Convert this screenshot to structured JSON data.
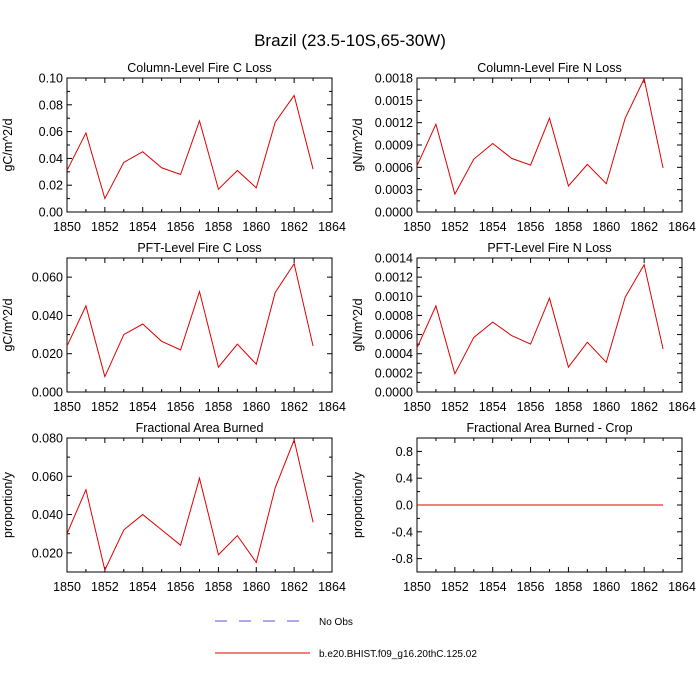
{
  "figure": {
    "title": "Brazil (23.5-10S,65-30W)"
  },
  "legend": {
    "items": [
      {
        "label": "No Obs",
        "style": "dashed",
        "color": "#5a5ad8"
      },
      {
        "label": "b.e20.BHIST.f09_g16.20thC.125.02",
        "style": "solid",
        "color": "#e00000"
      }
    ]
  },
  "chart_data": [
    {
      "type": "line",
      "title": "Column-Level Fire C Loss",
      "xlabel": "",
      "ylabel": "gC/m^2/d",
      "xlim": [
        1850,
        1864
      ],
      "ylim": [
        0,
        0.1
      ],
      "xticks": [
        1850,
        1852,
        1854,
        1856,
        1858,
        1860,
        1862,
        1864
      ],
      "xtick_labels": [
        "1850",
        "1852",
        "1854",
        "1856",
        "1858",
        "1860",
        "1862",
        "1864"
      ],
      "yticks": [
        0,
        0.02,
        0.04,
        0.06,
        0.08,
        0.1
      ],
      "ytick_labels": [
        "0.00",
        "0.02",
        "0.04",
        "0.06",
        "0.08",
        "0.10"
      ],
      "series": [
        {
          "name": "b.e20.BHIST.f09_g16.20thC.125.02",
          "color": "#e00000",
          "x": [
            1850,
            1851,
            1852,
            1853,
            1854,
            1855,
            1856,
            1857,
            1858,
            1859,
            1860,
            1861,
            1862,
            1863
          ],
          "y": [
            0.031,
            0.059,
            0.01,
            0.037,
            0.045,
            0.033,
            0.028,
            0.068,
            0.017,
            0.031,
            0.018,
            0.067,
            0.087,
            0.032
          ]
        }
      ]
    },
    {
      "type": "line",
      "title": "Column-Level Fire N Loss",
      "xlabel": "",
      "ylabel": "gN/m^2/d",
      "xlim": [
        1850,
        1864
      ],
      "ylim": [
        0,
        0.0018
      ],
      "xticks": [
        1850,
        1852,
        1854,
        1856,
        1858,
        1860,
        1862,
        1864
      ],
      "xtick_labels": [
        "1850",
        "1852",
        "1854",
        "1856",
        "1858",
        "1860",
        "1862",
        "1864"
      ],
      "yticks": [
        0,
        0.0003,
        0.0006,
        0.0009,
        0.0012,
        0.0015,
        0.0018
      ],
      "ytick_labels": [
        "0.0000",
        "0.0003",
        "0.0006",
        "0.0009",
        "0.0012",
        "0.0015",
        "0.0018"
      ],
      "series": [
        {
          "name": "b.e20.BHIST.f09_g16.20thC.125.02",
          "color": "#e00000",
          "x": [
            1850,
            1851,
            1852,
            1853,
            1854,
            1855,
            1856,
            1857,
            1858,
            1859,
            1860,
            1861,
            1862,
            1863
          ],
          "y": [
            0.00062,
            0.00118,
            0.00024,
            0.00071,
            0.00092,
            0.00072,
            0.00063,
            0.00126,
            0.00035,
            0.00064,
            0.00038,
            0.00126,
            0.00179,
            0.00059
          ]
        }
      ]
    },
    {
      "type": "line",
      "title": "PFT-Level Fire C Loss",
      "xlabel": "",
      "ylabel": "gC/m^2/d",
      "xlim": [
        1850,
        1864
      ],
      "ylim": [
        0,
        0.07
      ],
      "xticks": [
        1850,
        1852,
        1854,
        1856,
        1858,
        1860,
        1862,
        1864
      ],
      "xtick_labels": [
        "1850",
        "1852",
        "1854",
        "1856",
        "1858",
        "1860",
        "1862",
        "1864"
      ],
      "yticks": [
        0,
        0.02,
        0.04,
        0.06
      ],
      "ytick_labels": [
        "0.000",
        "0.020",
        "0.040",
        "0.060"
      ],
      "series": [
        {
          "name": "b.e20.BHIST.f09_g16.20thC.125.02",
          "color": "#e00000",
          "x": [
            1850,
            1851,
            1852,
            1853,
            1854,
            1855,
            1856,
            1857,
            1858,
            1859,
            1860,
            1861,
            1862,
            1863
          ],
          "y": [
            0.024,
            0.045,
            0.008,
            0.03,
            0.0355,
            0.0265,
            0.022,
            0.0525,
            0.013,
            0.025,
            0.0145,
            0.052,
            0.067,
            0.024
          ]
        }
      ]
    },
    {
      "type": "line",
      "title": "PFT-Level Fire N Loss",
      "xlabel": "",
      "ylabel": "gN/m^2/d",
      "xlim": [
        1850,
        1864
      ],
      "ylim": [
        0,
        0.0014
      ],
      "xticks": [
        1850,
        1852,
        1854,
        1856,
        1858,
        1860,
        1862,
        1864
      ],
      "xtick_labels": [
        "1850",
        "1852",
        "1854",
        "1856",
        "1858",
        "1860",
        "1862",
        "1864"
      ],
      "yticks": [
        0,
        0.0002,
        0.0004,
        0.0006,
        0.0008,
        0.001,
        0.0012,
        0.0014
      ],
      "ytick_labels": [
        "0.0000",
        "0.0002",
        "0.0004",
        "0.0006",
        "0.0008",
        "0.0010",
        "0.0012",
        "0.0014"
      ],
      "series": [
        {
          "name": "b.e20.BHIST.f09_g16.20thC.125.02",
          "color": "#e00000",
          "x": [
            1850,
            1851,
            1852,
            1853,
            1854,
            1855,
            1856,
            1857,
            1858,
            1859,
            1860,
            1861,
            1862,
            1863
          ],
          "y": [
            0.00046,
            0.0009,
            0.00019,
            0.00057,
            0.00073,
            0.00059,
            0.0005,
            0.00098,
            0.00026,
            0.00052,
            0.00031,
            0.00099,
            0.00133,
            0.00045
          ]
        }
      ]
    },
    {
      "type": "line",
      "title": "Fractional Area Burned",
      "xlabel": "",
      "ylabel": "proportion/y",
      "xlim": [
        1850,
        1864
      ],
      "ylim": [
        0.01,
        0.08
      ],
      "xticks": [
        1850,
        1852,
        1854,
        1856,
        1858,
        1860,
        1862,
        1864
      ],
      "xtick_labels": [
        "1850",
        "1852",
        "1854",
        "1856",
        "1858",
        "1860",
        "1862",
        "1864"
      ],
      "yticks": [
        0.02,
        0.04,
        0.06,
        0.08
      ],
      "ytick_labels": [
        "0.020",
        "0.040",
        "0.060",
        "0.080"
      ],
      "series": [
        {
          "name": "b.e20.BHIST.f09_g16.20thC.125.02",
          "color": "#e00000",
          "x": [
            1850,
            1851,
            1852,
            1853,
            1854,
            1855,
            1856,
            1857,
            1858,
            1859,
            1860,
            1861,
            1862,
            1863
          ],
          "y": [
            0.03,
            0.053,
            0.011,
            0.032,
            0.04,
            0.032,
            0.024,
            0.059,
            0.019,
            0.029,
            0.015,
            0.054,
            0.079,
            0.036
          ]
        }
      ]
    },
    {
      "type": "line",
      "title": "Fractional Area Burned - Crop",
      "xlabel": "",
      "ylabel": "proportion/y",
      "xlim": [
        1850,
        1864
      ],
      "ylim": [
        -1,
        1
      ],
      "xticks": [
        1850,
        1852,
        1854,
        1856,
        1858,
        1860,
        1862,
        1864
      ],
      "xtick_labels": [
        "1850",
        "1852",
        "1854",
        "1856",
        "1858",
        "1860",
        "1862",
        "1864"
      ],
      "yticks": [
        -0.8,
        -0.4,
        0,
        0.4,
        0.8
      ],
      "ytick_labels": [
        "-0.8",
        "-0.4",
        "0.0",
        "0.4",
        "0.8"
      ],
      "series": [
        {
          "name": "b.e20.BHIST.f09_g16.20thC.125.02",
          "color": "#e00000",
          "x": [
            1850,
            1851,
            1852,
            1853,
            1854,
            1855,
            1856,
            1857,
            1858,
            1859,
            1860,
            1861,
            1862,
            1863
          ],
          "y": [
            0,
            0,
            0,
            0,
            0,
            0,
            0,
            0,
            0,
            0,
            0,
            0,
            0,
            0
          ]
        }
      ]
    }
  ]
}
